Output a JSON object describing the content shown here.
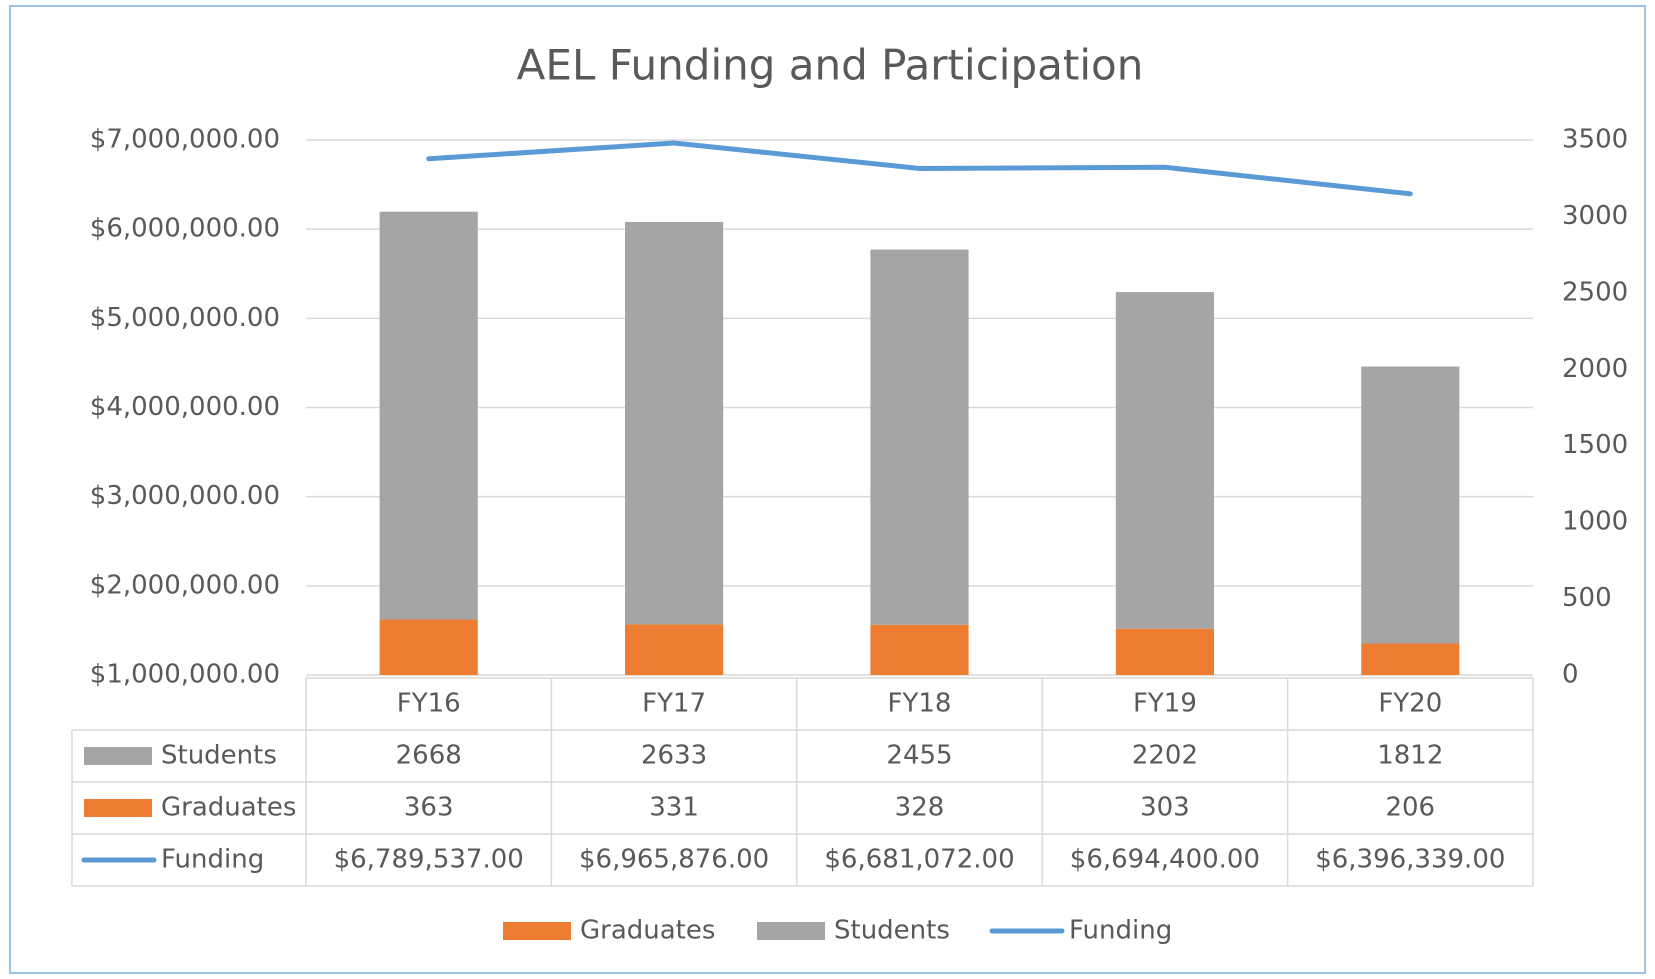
{
  "chart_data": {
    "type": "bar",
    "title": "AEL Funding and Participation",
    "categories": [
      "FY16",
      "FY17",
      "FY18",
      "FY19",
      "FY20"
    ],
    "stacked": true,
    "series": [
      {
        "name": "Graduates",
        "color": "#ed7d31",
        "axis": "y2",
        "values": [
          363,
          331,
          328,
          303,
          206
        ]
      },
      {
        "name": "Students",
        "color": "#a5a5a5",
        "axis": "y2",
        "values": [
          2668,
          2633,
          2455,
          2202,
          1812
        ]
      },
      {
        "name": "Funding",
        "color": "#5b9bd5",
        "type": "line",
        "values": [
          6789537,
          6965876,
          6681072,
          6694400,
          6396339
        ],
        "value_labels": [
          "$6,789,537.00",
          "$6,965,876.00",
          "$6,681,072.00",
          "$6,694,400.00",
          "$6,396,339.00"
        ]
      }
    ],
    "ylim": [
      1000000,
      7000000
    ],
    "yticks": [
      {
        "value": 1000000,
        "label": "$1,000,000.00"
      },
      {
        "value": 2000000,
        "label": "$2,000,000.00"
      },
      {
        "value": 3000000,
        "label": "$3,000,000.00"
      },
      {
        "value": 4000000,
        "label": "$4,000,000.00"
      },
      {
        "value": 5000000,
        "label": "$5,000,000.00"
      },
      {
        "value": 6000000,
        "label": "$6,000,000.00"
      },
      {
        "value": 7000000,
        "label": "$7,000,000.00"
      }
    ],
    "y2lim": [
      0,
      3500
    ],
    "y2ticks": [
      0,
      500,
      1000,
      1500,
      2000,
      2500,
      3000,
      3500
    ],
    "grid": true,
    "legend": "bottom"
  }
}
